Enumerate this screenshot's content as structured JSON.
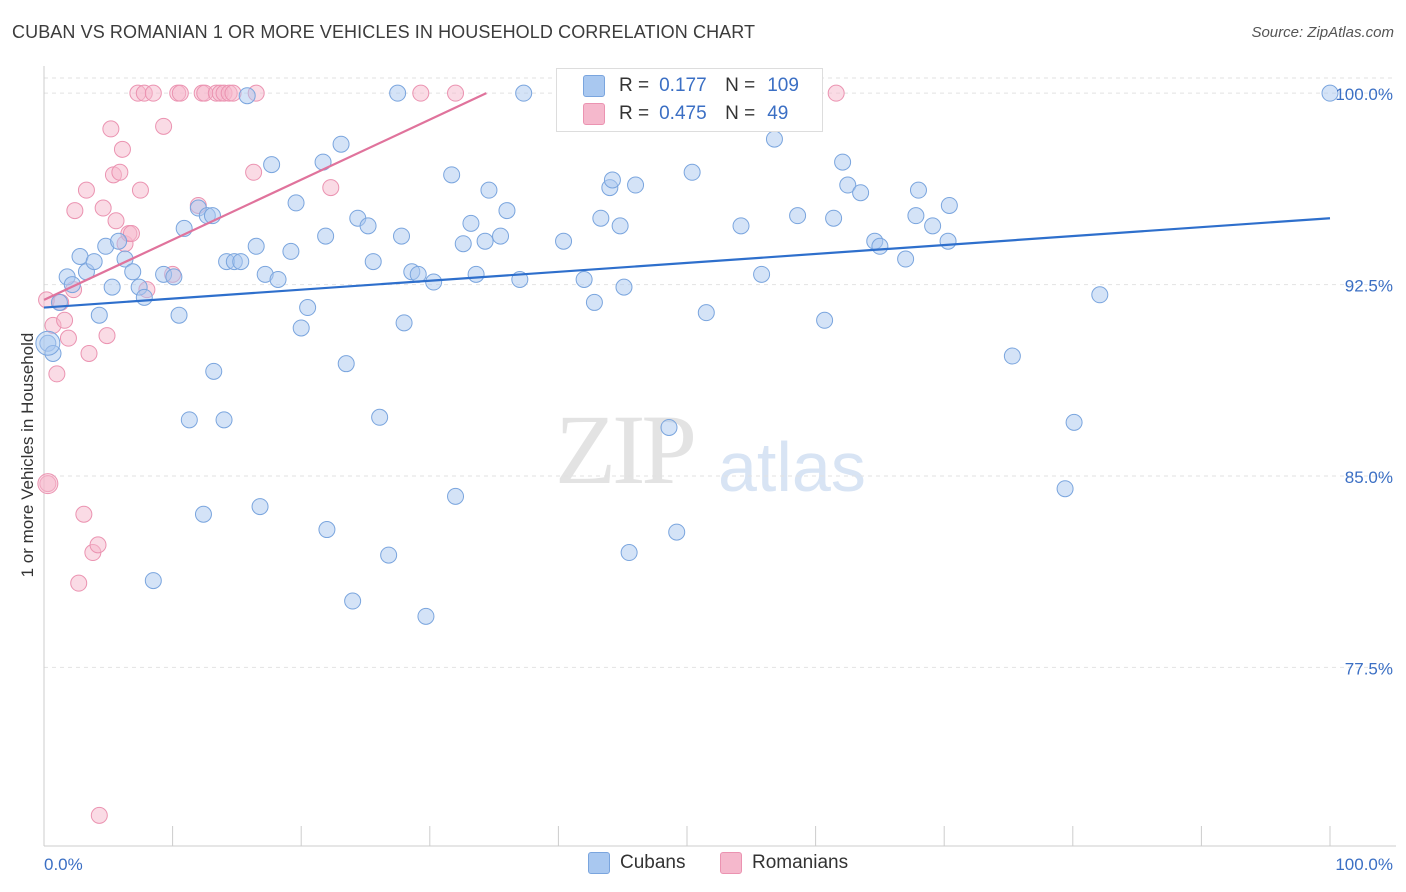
{
  "header": {
    "title": "CUBAN VS ROMANIAN 1 OR MORE VEHICLES IN HOUSEHOLD CORRELATION CHART",
    "source": "Source: ZipAtlas.com"
  },
  "watermark": {
    "zip": "ZIP",
    "atlas": "atlas"
  },
  "legend": {
    "r_label": "R =",
    "n_label": "N =",
    "rows": [
      {
        "series": "Cubans",
        "r": "0.177",
        "n": "109",
        "color": "#a9c8f0"
      },
      {
        "series": "Romanians",
        "r": "0.475",
        "n": "49",
        "color": "#f5b8cc"
      }
    ]
  },
  "bottom_legend": [
    "Cubans",
    "Romanians"
  ],
  "colors": {
    "cubans_fill": "#a9c8f0",
    "cubans_stroke": "#7aa5de",
    "cubans_line": "#2e6fcc",
    "romanians_fill": "#f5b8cc",
    "romanians_stroke": "#eb93b1",
    "romanians_line": "#e0739c",
    "tick_label": "#3b6fc4",
    "grid": "#e2e2e2"
  },
  "chart_data": {
    "type": "scatter",
    "title": "CUBAN VS ROMANIAN 1 OR MORE VEHICLES IN HOUSEHOLD CORRELATION CHART",
    "xlabel": "",
    "ylabel": "1 or more Vehicles in Household",
    "xlim": [
      0,
      100
    ],
    "ylim": [
      70.5,
      101.3
    ],
    "x_tick_labels": [
      "0.0%",
      "100.0%"
    ],
    "y_ticks": [
      77.5,
      85.0,
      92.5,
      100.0
    ],
    "y_tick_labels": [
      "77.5%",
      "85.0%",
      "92.5%",
      "100.0%"
    ],
    "grid": true,
    "legend_position": "top-center",
    "series": [
      {
        "name": "Cubans",
        "trend": {
          "x": [
            0,
            100
          ],
          "y": [
            91.6,
            95.1
          ]
        },
        "points": [
          [
            0.3,
            90.2
          ],
          [
            0.7,
            89.8
          ],
          [
            1.2,
            91.8
          ],
          [
            1.8,
            92.8
          ],
          [
            2.2,
            92.5
          ],
          [
            2.8,
            93.6
          ],
          [
            3.3,
            93.0
          ],
          [
            3.9,
            93.4
          ],
          [
            4.3,
            91.3
          ],
          [
            4.8,
            94.0
          ],
          [
            5.3,
            92.4
          ],
          [
            5.8,
            94.2
          ],
          [
            6.3,
            93.5
          ],
          [
            6.9,
            93.0
          ],
          [
            7.4,
            92.4
          ],
          [
            7.8,
            92.0
          ],
          [
            8.5,
            80.9
          ],
          [
            9.3,
            92.9
          ],
          [
            10.1,
            92.8
          ],
          [
            10.5,
            91.3
          ],
          [
            10.9,
            94.7
          ],
          [
            11.3,
            87.2
          ],
          [
            12.0,
            95.5
          ],
          [
            12.4,
            83.5
          ],
          [
            12.7,
            95.2
          ],
          [
            13.1,
            95.2
          ],
          [
            13.2,
            89.1
          ],
          [
            14.0,
            87.2
          ],
          [
            14.2,
            93.4
          ],
          [
            14.8,
            93.4
          ],
          [
            15.3,
            93.4
          ],
          [
            15.8,
            99.9
          ],
          [
            16.5,
            94.0
          ],
          [
            16.8,
            83.8
          ],
          [
            17.2,
            92.9
          ],
          [
            17.7,
            97.2
          ],
          [
            18.2,
            92.7
          ],
          [
            19.2,
            93.8
          ],
          [
            19.6,
            95.7
          ],
          [
            20.0,
            90.8
          ],
          [
            20.5,
            91.6
          ],
          [
            21.7,
            97.3
          ],
          [
            21.9,
            94.4
          ],
          [
            22.0,
            82.9
          ],
          [
            23.1,
            98.0
          ],
          [
            23.5,
            89.4
          ],
          [
            24.0,
            80.1
          ],
          [
            24.4,
            95.1
          ],
          [
            25.2,
            94.8
          ],
          [
            25.6,
            93.4
          ],
          [
            26.1,
            87.3
          ],
          [
            26.8,
            81.9
          ],
          [
            27.5,
            100.0
          ],
          [
            27.8,
            94.4
          ],
          [
            28.0,
            91.0
          ],
          [
            28.6,
            93.0
          ],
          [
            29.1,
            92.9
          ],
          [
            29.7,
            79.5
          ],
          [
            30.3,
            92.6
          ],
          [
            31.7,
            96.8
          ],
          [
            32.0,
            84.2
          ],
          [
            32.6,
            94.1
          ],
          [
            33.2,
            94.9
          ],
          [
            33.6,
            92.9
          ],
          [
            34.3,
            94.2
          ],
          [
            34.6,
            96.2
          ],
          [
            35.5,
            94.4
          ],
          [
            36.0,
            95.4
          ],
          [
            37.0,
            92.7
          ],
          [
            37.3,
            100.0
          ],
          [
            40.4,
            94.2
          ],
          [
            42.0,
            92.7
          ],
          [
            42.8,
            91.8
          ],
          [
            43.3,
            95.1
          ],
          [
            44.0,
            96.3
          ],
          [
            44.2,
            96.6
          ],
          [
            44.8,
            94.8
          ],
          [
            45.1,
            92.4
          ],
          [
            45.5,
            82.0
          ],
          [
            46.0,
            96.4
          ],
          [
            48.6,
            86.9
          ],
          [
            49.2,
            82.8
          ],
          [
            50.4,
            96.9
          ],
          [
            51.5,
            91.4
          ],
          [
            52.4,
            99.4
          ],
          [
            54.2,
            94.8
          ],
          [
            54.9,
            98.9
          ],
          [
            55.8,
            92.9
          ],
          [
            56.8,
            98.2
          ],
          [
            58.6,
            95.2
          ],
          [
            60.7,
            91.1
          ],
          [
            61.4,
            95.1
          ],
          [
            62.1,
            97.3
          ],
          [
            62.5,
            96.4
          ],
          [
            63.5,
            96.1
          ],
          [
            64.6,
            94.2
          ],
          [
            65.0,
            94.0
          ],
          [
            67.0,
            93.5
          ],
          [
            67.8,
            95.2
          ],
          [
            68.0,
            96.2
          ],
          [
            69.1,
            94.8
          ],
          [
            70.3,
            94.2
          ],
          [
            70.4,
            95.6
          ],
          [
            75.3,
            89.7
          ],
          [
            79.4,
            84.5
          ],
          [
            80.1,
            87.1
          ],
          [
            82.1,
            92.1
          ],
          [
            100.0,
            100.0
          ]
        ]
      },
      {
        "name": "Romanians",
        "trend": {
          "x": [
            0,
            34.4
          ],
          "y": [
            91.9,
            100.0
          ]
        },
        "points": [
          [
            0.2,
            91.9
          ],
          [
            0.3,
            84.7
          ],
          [
            0.7,
            90.9
          ],
          [
            1.0,
            89.0
          ],
          [
            1.3,
            91.8
          ],
          [
            1.6,
            91.1
          ],
          [
            1.9,
            90.4
          ],
          [
            2.3,
            92.3
          ],
          [
            2.4,
            95.4
          ],
          [
            2.7,
            80.8
          ],
          [
            3.1,
            83.5
          ],
          [
            3.3,
            96.2
          ],
          [
            3.5,
            89.8
          ],
          [
            3.8,
            82.0
          ],
          [
            4.2,
            82.3
          ],
          [
            4.3,
            71.7
          ],
          [
            4.6,
            95.5
          ],
          [
            4.9,
            90.5
          ],
          [
            5.2,
            98.6
          ],
          [
            5.4,
            96.8
          ],
          [
            5.6,
            95.0
          ],
          [
            5.9,
            96.9
          ],
          [
            6.1,
            97.8
          ],
          [
            6.3,
            94.1
          ],
          [
            6.6,
            94.5
          ],
          [
            6.8,
            94.5
          ],
          [
            7.3,
            100.0
          ],
          [
            7.5,
            96.2
          ],
          [
            7.8,
            100.0
          ],
          [
            8.0,
            92.3
          ],
          [
            8.5,
            100.0
          ],
          [
            9.3,
            98.7
          ],
          [
            10.0,
            92.9
          ],
          [
            10.4,
            100.0
          ],
          [
            10.6,
            100.0
          ],
          [
            12.0,
            95.6
          ],
          [
            12.3,
            100.0
          ],
          [
            12.5,
            100.0
          ],
          [
            13.4,
            100.0
          ],
          [
            13.7,
            100.0
          ],
          [
            14.0,
            100.0
          ],
          [
            14.4,
            100.0
          ],
          [
            14.7,
            100.0
          ],
          [
            16.3,
            96.9
          ],
          [
            16.5,
            100.0
          ],
          [
            22.3,
            96.3
          ],
          [
            29.3,
            100.0
          ],
          [
            32.0,
            100.0
          ],
          [
            61.6,
            100.0
          ]
        ]
      }
    ]
  }
}
